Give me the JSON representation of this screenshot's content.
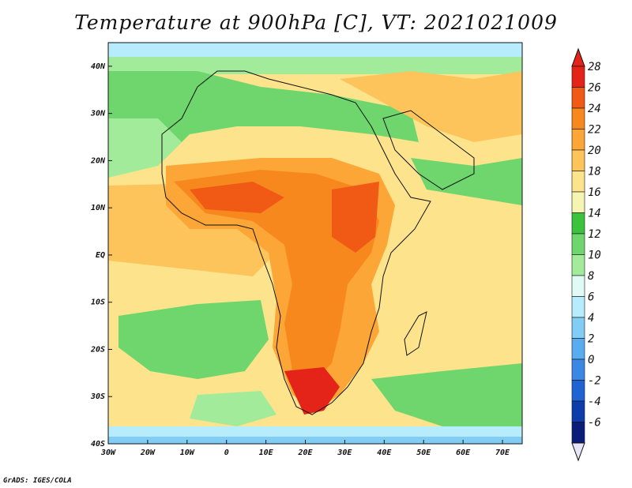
{
  "title": "Temperature at 900hPa [C], VT: 2021021009",
  "credit": "GrADS: IGES/COLA",
  "map": {
    "projection": "lat-lon",
    "lon_range": [
      -30,
      75
    ],
    "lat_range": [
      -40,
      45
    ],
    "lon_ticks": [
      {
        "v": -30,
        "label": "30W"
      },
      {
        "v": -20,
        "label": "20W"
      },
      {
        "v": -10,
        "label": "10W"
      },
      {
        "v": 0,
        "label": "0"
      },
      {
        "v": 10,
        "label": "10E"
      },
      {
        "v": 20,
        "label": "20E"
      },
      {
        "v": 30,
        "label": "30E"
      },
      {
        "v": 40,
        "label": "40E"
      },
      {
        "v": 50,
        "label": "50E"
      },
      {
        "v": 60,
        "label": "60E"
      },
      {
        "v": 70,
        "label": "70E"
      }
    ],
    "lat_ticks": [
      {
        "v": 40,
        "label": "40N"
      },
      {
        "v": 30,
        "label": "30N"
      },
      {
        "v": 20,
        "label": "20N"
      },
      {
        "v": 10,
        "label": "10N"
      },
      {
        "v": 0,
        "label": "EQ"
      },
      {
        "v": -10,
        "label": "10S"
      },
      {
        "v": -20,
        "label": "20S"
      },
      {
        "v": -30,
        "label": "30S"
      },
      {
        "v": -40,
        "label": "40S"
      }
    ]
  },
  "colorbar": {
    "levels": [
      "28",
      "26",
      "24",
      "22",
      "20",
      "18",
      "16",
      "14",
      "12",
      "10",
      "8",
      "6",
      "4",
      "2",
      "0",
      "-2",
      "-4",
      "-6"
    ],
    "colors": [
      "#e42418",
      "#f05a14",
      "#f7881e",
      "#fba636",
      "#fcc45a",
      "#fde48c",
      "#f6f4b2",
      "#3cc23c",
      "#6ed66c",
      "#a2eb9a",
      "#e0fbf6",
      "#b6ecfb",
      "#82cdf6",
      "#5aacf0",
      "#3a88e4",
      "#1f62d2",
      "#0d3cab",
      "#0a1d7a"
    ]
  }
}
